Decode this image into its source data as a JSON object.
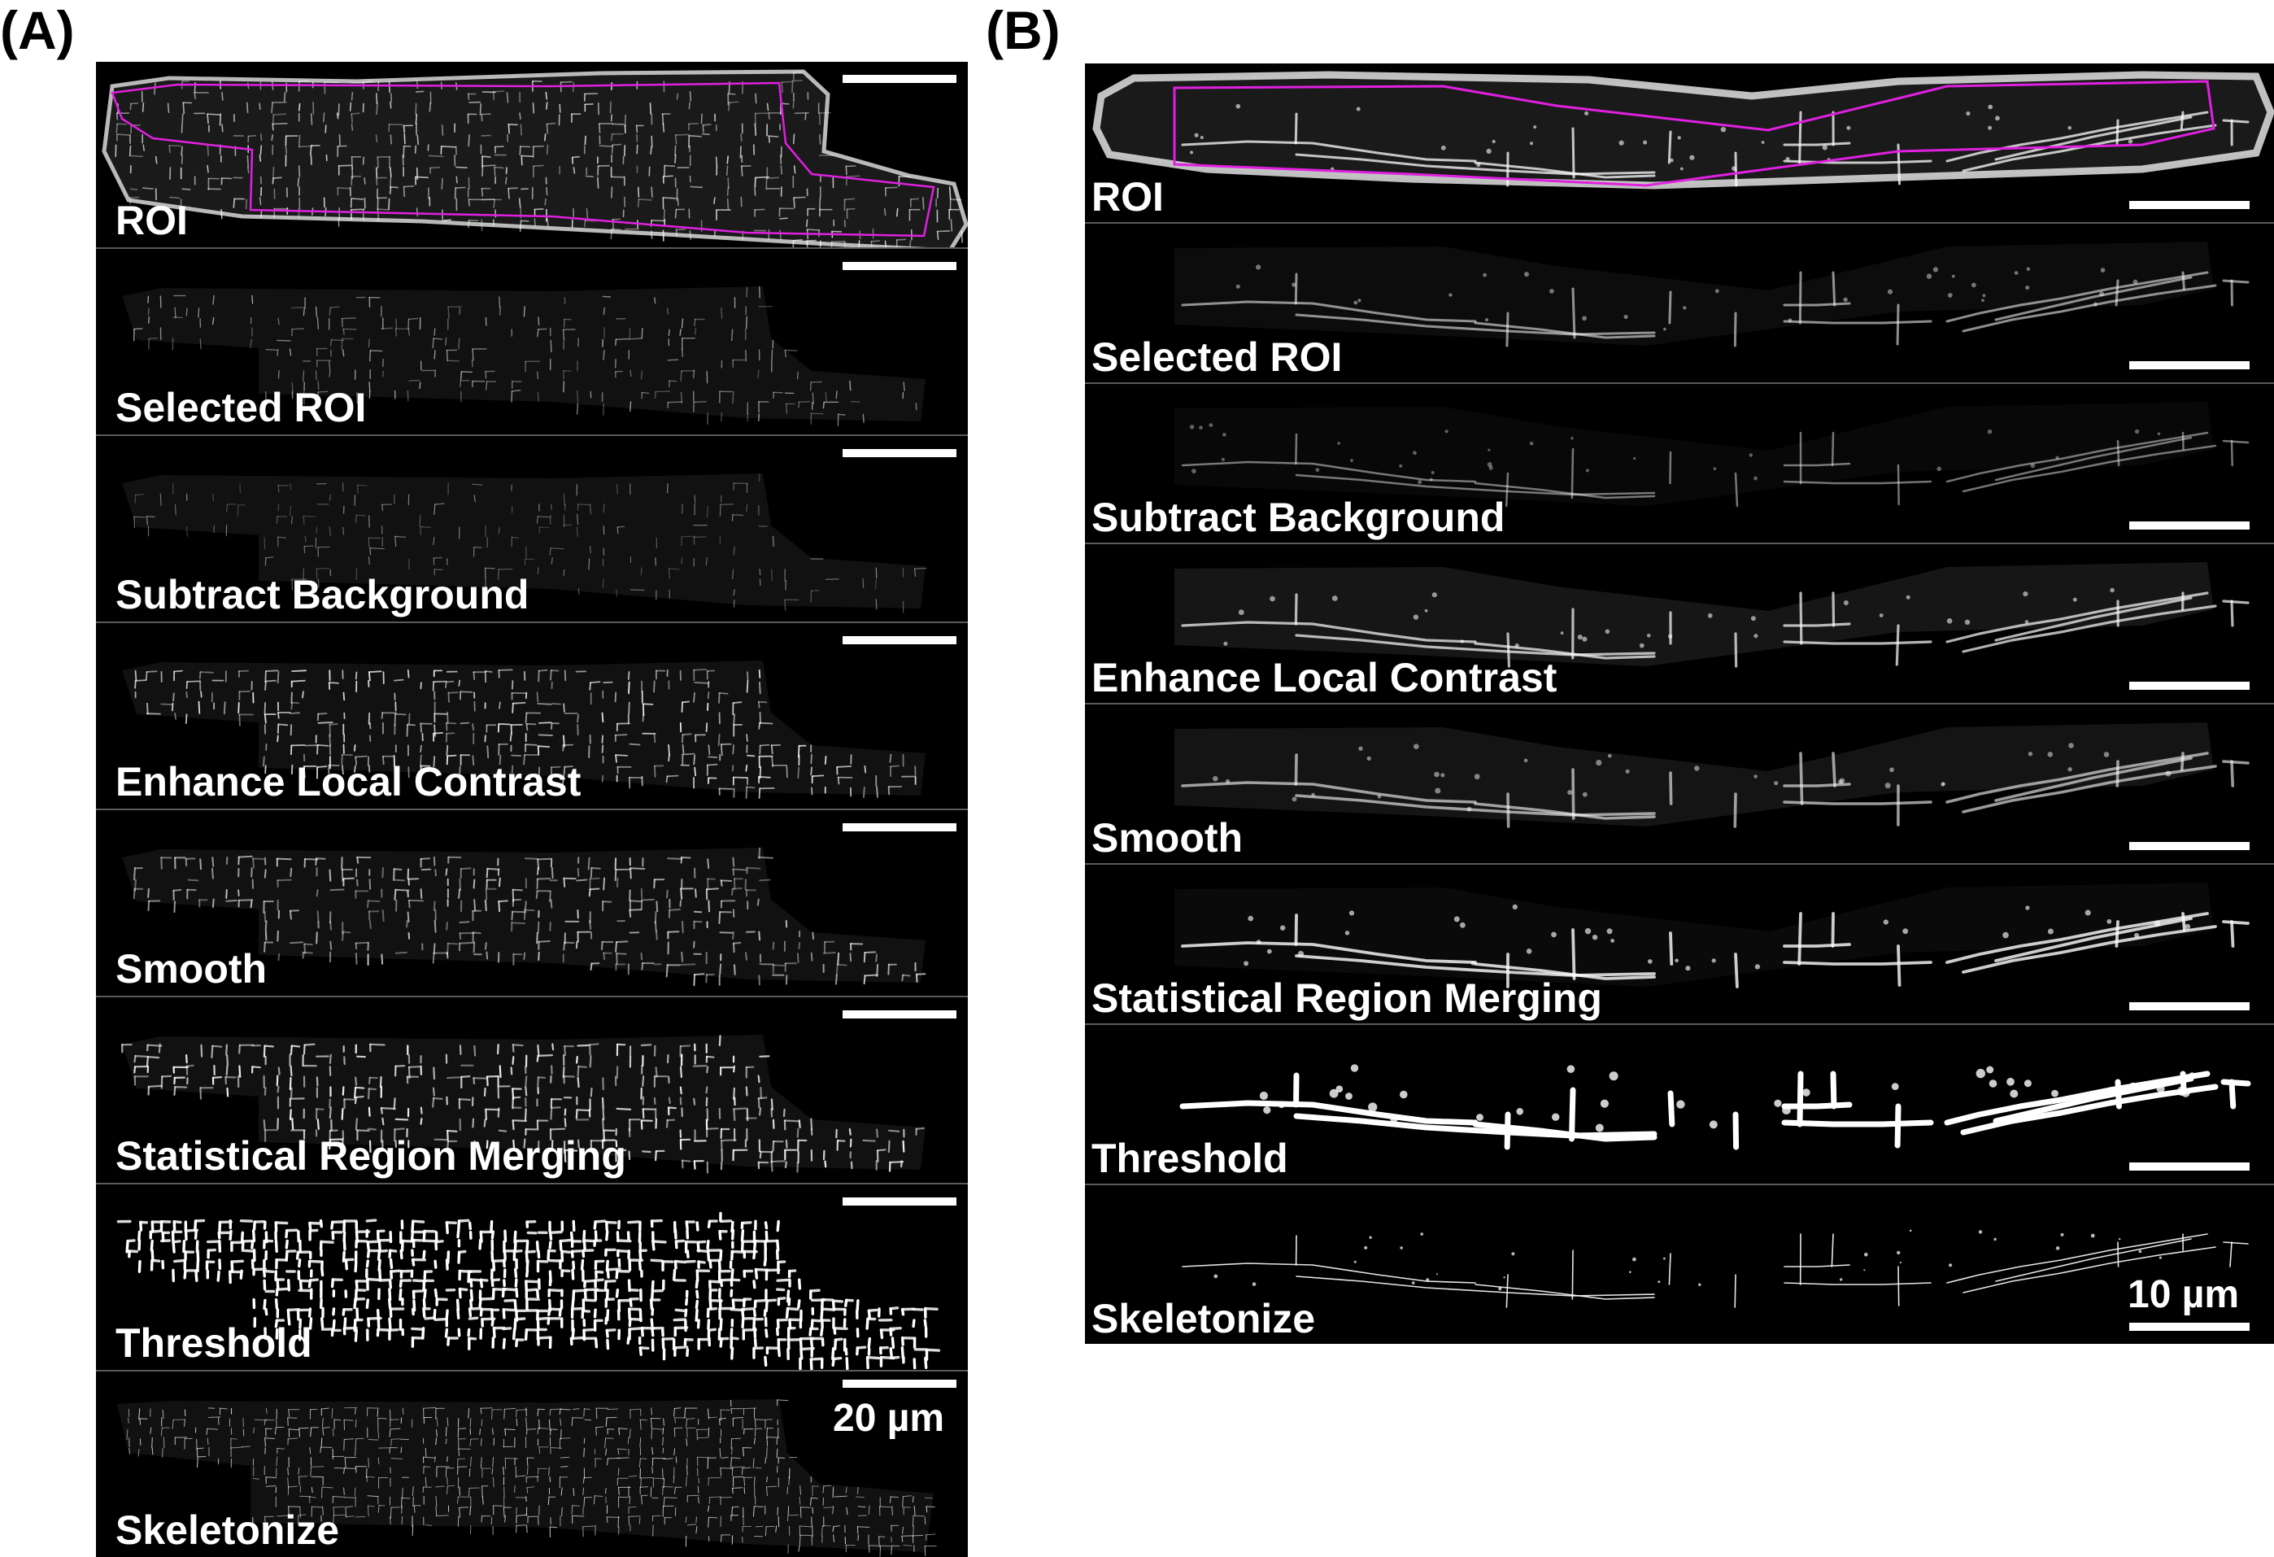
{
  "figure": {
    "panel_a": {
      "letter": "(A)",
      "steps": [
        "ROI",
        "Selected ROI",
        "Subtract Background",
        "Enhance Local Contrast",
        "Smooth",
        "Statistical Region Merging",
        "Threshold",
        "Skeletonize"
      ],
      "scale_label": "20 µm"
    },
    "panel_b": {
      "letter": "(B)",
      "steps": [
        "ROI",
        "Selected ROI",
        "Subtract Background",
        "Enhance Local Contrast",
        "Smooth",
        "Statistical Region Merging",
        "Threshold",
        "Skeletonize"
      ],
      "scale_label": "10 µm"
    },
    "colors": {
      "roi_outline": "#e020e0",
      "tile_background": "#000000",
      "label_text": "#ffffff"
    }
  }
}
